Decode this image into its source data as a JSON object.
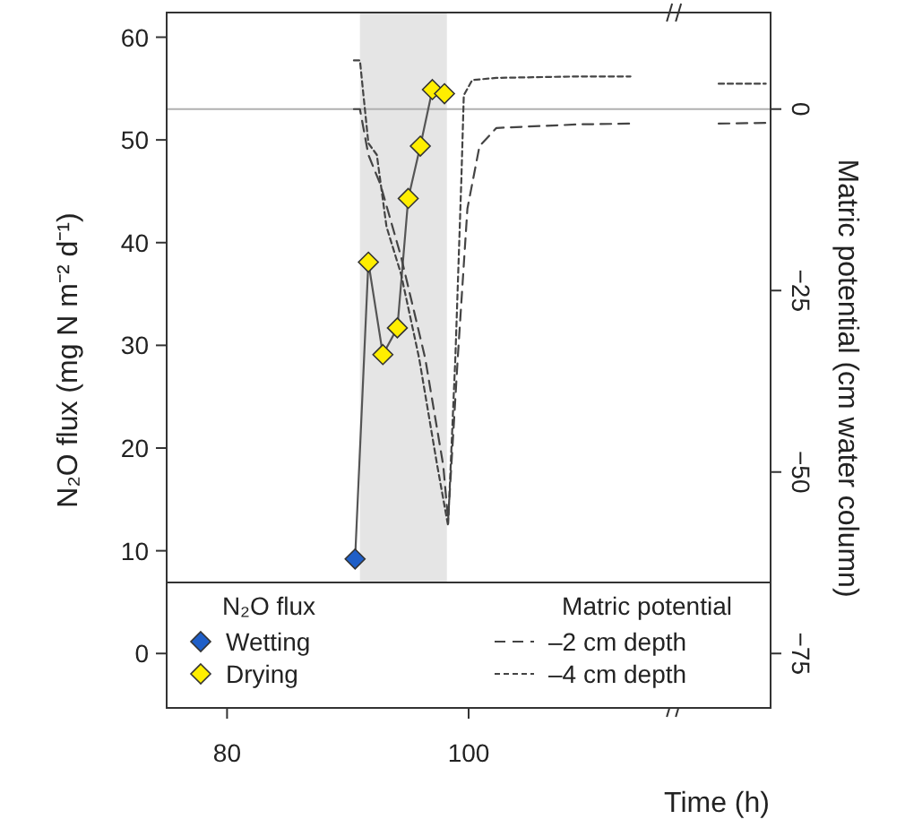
{
  "chart_data": {
    "type": "line",
    "xlabel": "Time (h)",
    "ylabel": "N₂O flux (mg N m⁻² d⁻¹)",
    "y2label": "Matric potential (cm water column)",
    "legend_title": "N₂O flux",
    "annotations": [
      "Matric potential"
    ],
    "xlim": [
      75,
      125
    ],
    "xticks": [
      80,
      100
    ],
    "ylim": [
      -5.3,
      62.4
    ],
    "yticks": [
      0,
      10,
      20,
      30,
      40,
      50,
      60
    ],
    "y2lim": [
      -82.5,
      13.3
    ],
    "y2ticks": [
      0,
      -25,
      -50,
      -75
    ],
    "bands": [
      {
        "axis": "x",
        "from": 91,
        "to": 98.2,
        "color": "#e5e5e5"
      }
    ],
    "ref_lines": [
      {
        "axis": "y2",
        "value": 0,
        "color": "#b0b0b0"
      }
    ],
    "legend": "bottom",
    "grid": false,
    "series": [
      {
        "color": "#555555",
        "marker": "none",
        "line_style": "solid",
        "x": [
          90.6,
          91.7,
          92.9,
          94.1,
          95.0,
          96.0,
          97.0,
          98.0
        ],
        "values": [
          9.2,
          38.1,
          29.1,
          31.7,
          44.3,
          49.4,
          54.9,
          54.5
        ]
      },
      {
        "type": "scatter",
        "name": "Wetting",
        "color": "#1f5fc8",
        "marker": "diamond",
        "x": [
          90.6
        ],
        "values": [
          9.2
        ]
      },
      {
        "type": "scatter",
        "name": "Drying",
        "color": "#ffee00",
        "marker": "diamond",
        "x": [
          91.7,
          92.9,
          94.1,
          95.0,
          96.0,
          97.0,
          98.0
        ],
        "values": [
          38.1,
          29.1,
          31.7,
          44.3,
          49.4,
          54.9,
          54.5
        ]
      },
      {
        "name": "–2 cm depth",
        "axis": "y2",
        "color": "#444444",
        "marker": "none",
        "line_style": "dashed",
        "x": [
          90.5,
          91.0,
          91.7,
          92.7,
          94.4,
          96.4,
          97.9,
          98.3,
          99.1,
          99.9,
          100.9,
          102.3,
          109.2,
          113.4,
          117.0,
          120.7,
          124.6
        ],
        "values": [
          0,
          0,
          -6.3,
          -10.4,
          -20.3,
          -34.3,
          -49.1,
          -56.6,
          -34.3,
          -13.7,
          -5.1,
          -2.6,
          -2.1,
          -2.0,
          null,
          -2.0,
          -1.9
        ]
      },
      {
        "name": "–4 cm depth",
        "axis": "y2",
        "color": "#444444",
        "marker": "none",
        "line_style": "dotted",
        "x": [
          90.5,
          91.0,
          91.7,
          92.4,
          93.2,
          94.4,
          95.9,
          97.4,
          98.3,
          98.9,
          99.4,
          99.6,
          100.3,
          102.3,
          109.2,
          113.4,
          117.0,
          120.7,
          124.6
        ],
        "values": [
          6.7,
          6.7,
          -4.7,
          -6.3,
          -16.2,
          -22.7,
          -34.3,
          -49.1,
          -57.4,
          -34.3,
          -9.6,
          1.9,
          4.0,
          4.3,
          4.5,
          4.5,
          null,
          3.5,
          3.5
        ]
      }
    ]
  }
}
